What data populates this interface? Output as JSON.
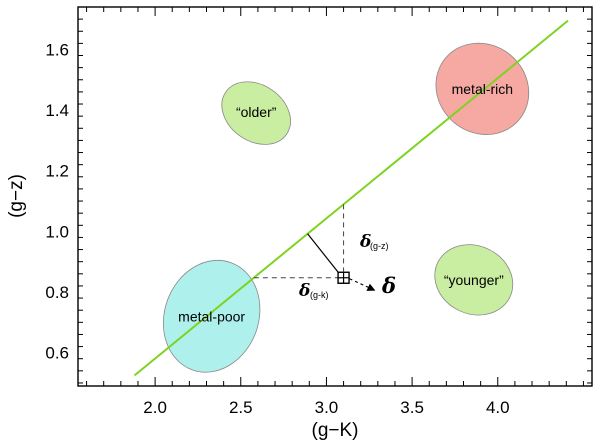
{
  "chart_data": {
    "type": "scatter",
    "xlabel": "(g−K)",
    "ylabel": "(g−z)",
    "xlim": [
      1.55,
      4.55
    ],
    "ylim": [
      0.49,
      1.74
    ],
    "x_ticks": [
      "2.0",
      "2.5",
      "3.0",
      "3.5",
      "4.0"
    ],
    "y_ticks": [
      "0.6",
      "0.8",
      "1.0",
      "1.2",
      "1.4",
      "1.6"
    ],
    "grid": false,
    "relation_line": {
      "x": [
        1.88,
        4.41
      ],
      "y": [
        0.525,
        1.695
      ],
      "color": "#7ed321"
    },
    "regions": [
      {
        "label": "metal-poor",
        "center_x": 2.33,
        "center_y": 0.72,
        "color": "#aef0ec"
      },
      {
        "label": "metal-rich",
        "center_x": 3.91,
        "center_y": 1.47,
        "color": "#f6a9a2"
      },
      {
        "label": "“older”",
        "center_x": 2.59,
        "center_y": 1.39,
        "color": "#c9eea2"
      },
      {
        "label": "“younger”",
        "center_x": 3.86,
        "center_y": 0.84,
        "color": "#c9eea2"
      }
    ],
    "point": {
      "x": 3.1,
      "y": 0.847,
      "marker": "boxed-cross"
    },
    "annotations": {
      "delta_symbol": "δ",
      "delta_gz_subscript": "(g-z)",
      "delta_gk_subscript": "(g-k)"
    }
  }
}
